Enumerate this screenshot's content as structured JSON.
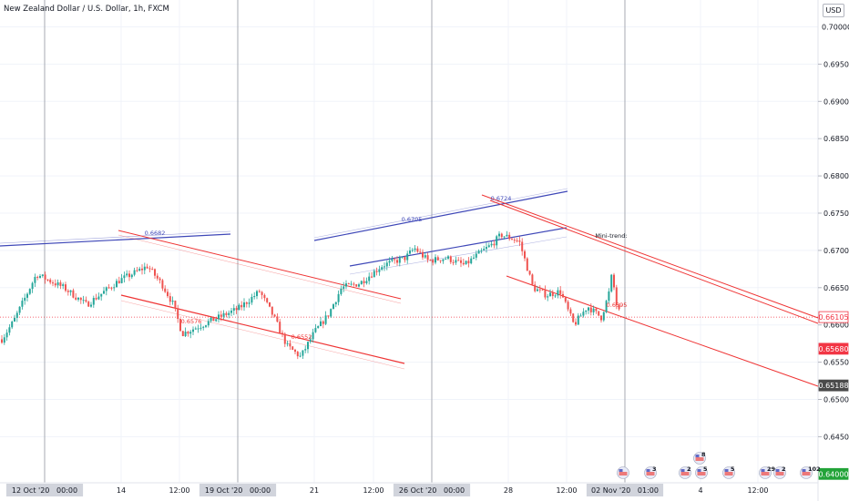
{
  "header": {
    "title": "New Zealand Dollar / U.S. Dollar, 1h, FXCM",
    "currency": "USD"
  },
  "colors": {
    "up": "#26a69a",
    "down": "#ef5350",
    "channel_blue": "#3f48b8",
    "channel_red": "#ef3434",
    "last_price": "#f23645",
    "level_dark": "#4a4a4a",
    "level_green": "#22a338"
  },
  "chart_data": {
    "type": "candlestick",
    "symbol": "NZDUSD",
    "timeframe": "1h",
    "ylim": [
      0.6375,
      0.7
    ],
    "y_ticks": [
      "0.70000",
      "0.69500",
      "0.69000",
      "0.68500",
      "0.68000",
      "0.67500",
      "0.67000",
      "0.66500",
      "0.66000",
      "0.65500",
      "0.65000",
      "0.64500"
    ],
    "x_ticks": [
      "12 Oct '20  00:00",
      "14",
      "12:00",
      "19 Oct '20  00:00",
      "21",
      "12:00",
      "26 Oct '20  00:00",
      "28",
      "12:00",
      "02 Nov '20  01:00",
      "4",
      "12:00"
    ],
    "path_points": [
      [
        0,
        0.6577
      ],
      [
        15,
        0.6605
      ],
      [
        40,
        0.6668
      ],
      [
        70,
        0.665
      ],
      [
        95,
        0.6627
      ],
      [
        130,
        0.6659
      ],
      [
        162,
        0.6679
      ],
      [
        178,
        0.6654
      ],
      [
        190,
        0.6628
      ],
      [
        200,
        0.6588
      ],
      [
        218,
        0.6598
      ],
      [
        240,
        0.661
      ],
      [
        262,
        0.6622
      ],
      [
        285,
        0.6645
      ],
      [
        300,
        0.6612
      ],
      [
        315,
        0.6572
      ],
      [
        330,
        0.6557
      ],
      [
        345,
        0.659
      ],
      [
        360,
        0.6613
      ],
      [
        375,
        0.665
      ],
      [
        395,
        0.6656
      ],
      [
        420,
        0.668
      ],
      [
        445,
        0.669
      ],
      [
        455,
        0.6703
      ],
      [
        470,
        0.6686
      ],
      [
        490,
        0.669
      ],
      [
        510,
        0.668
      ],
      [
        525,
        0.6695
      ],
      [
        540,
        0.6708
      ],
      [
        550,
        0.6721
      ],
      [
        562,
        0.6716
      ],
      [
        570,
        0.6712
      ],
      [
        578,
        0.668
      ],
      [
        585,
        0.665
      ],
      [
        600,
        0.664
      ],
      [
        615,
        0.6645
      ],
      [
        630,
        0.66
      ],
      [
        645,
        0.6625
      ],
      [
        660,
        0.661
      ],
      [
        668,
        0.664
      ],
      [
        672,
        0.667
      ],
      [
        676,
        0.663
      ],
      [
        682,
        0.661
      ]
    ],
    "annotations": [
      {
        "text": "0.6682",
        "color": "#3f48b8"
      },
      {
        "text": "0.6576",
        "color": "#ef3434"
      },
      {
        "text": "0.6552",
        "color": "#ef3434"
      },
      {
        "text": "0.6705",
        "color": "#3f48b8"
      },
      {
        "text": "0.6724",
        "color": "#3f48b8"
      },
      {
        "text": "Mini-trend:",
        "color": "#131722"
      },
      {
        "text": "0.6595",
        "color": "#ef3434"
      }
    ],
    "price_tags": [
      {
        "text": "0.66105",
        "bg": "#ffffff",
        "fg": "#f23645",
        "border": "#f23645",
        "price": 0.66105
      },
      {
        "text": "0.65680",
        "bg": "#f23645",
        "fg": "#ffffff",
        "border": "#f23645",
        "price": 0.6568
      },
      {
        "text": "0.65188",
        "bg": "#4a4a4a",
        "fg": "#ffffff",
        "border": "#4a4a4a",
        "price": 0.65188
      },
      {
        "text": "0.64000",
        "bg": "#22a338",
        "fg": "#ffffff",
        "border": "#22a338",
        "price": 0.64
      }
    ],
    "events": [
      "3",
      "8",
      "2",
      "5",
      "5",
      "29",
      "2",
      "8",
      "102"
    ]
  }
}
